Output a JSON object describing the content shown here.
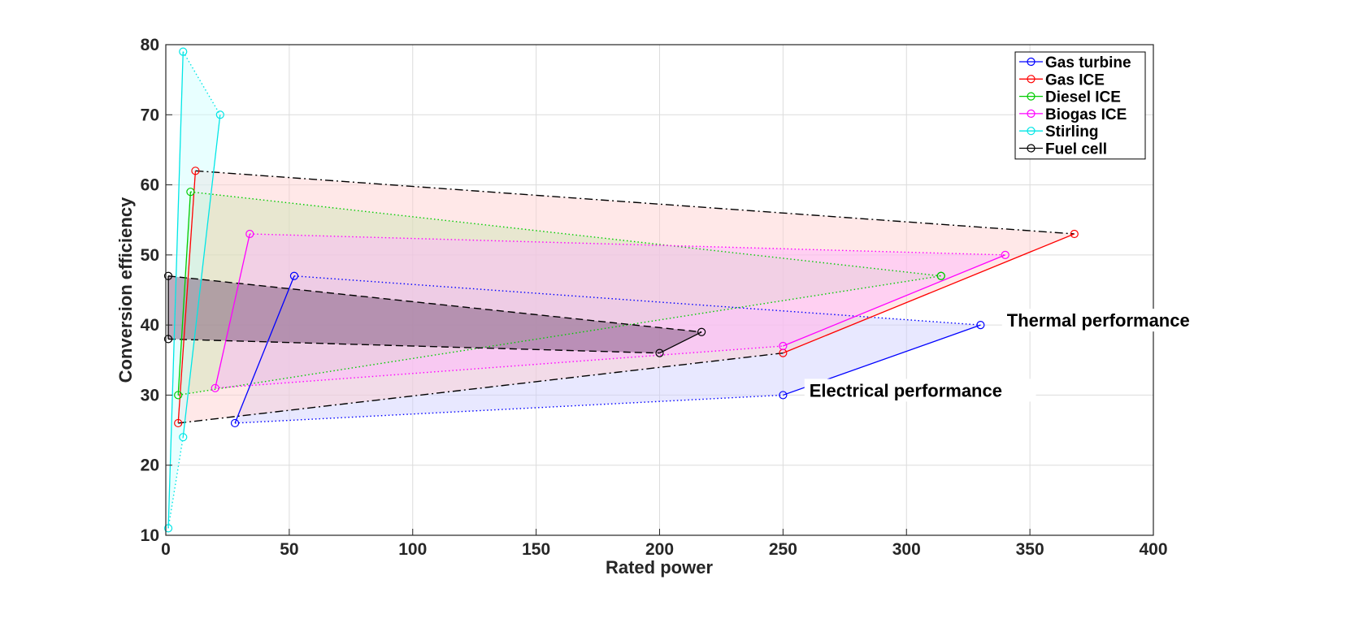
{
  "chart_data": {
    "type": "line",
    "title": "",
    "xlabel": "Rated power",
    "ylabel": "Conversion efficiency",
    "xlim": [
      0,
      400
    ],
    "ylim": [
      10,
      80
    ],
    "xticks": [
      0,
      50,
      100,
      150,
      200,
      250,
      300,
      350,
      400
    ],
    "yticks": [
      10,
      20,
      30,
      40,
      50,
      60,
      70,
      80
    ],
    "grid": true,
    "legend_position": "top-right",
    "series": [
      {
        "name": "Gas turbine",
        "color": "#0000ff",
        "fill": "#ccccff",
        "electrical": [
          [
            28,
            26
          ],
          [
            250,
            30
          ]
        ],
        "thermal": [
          [
            52,
            47
          ],
          [
            330,
            40
          ]
        ],
        "edge_style": "dotted"
      },
      {
        "name": "Gas ICE",
        "color": "#ff0000",
        "fill": "#ffcccc",
        "electrical": [
          [
            5,
            26
          ],
          [
            250,
            36
          ]
        ],
        "thermal": [
          [
            12,
            62
          ],
          [
            368,
            53
          ]
        ],
        "edge_style": "dashdot"
      },
      {
        "name": "Diesel ICE",
        "color": "#00cc00",
        "fill": "#cce6b3",
        "electrical": [
          [
            5,
            30
          ],
          [
            314,
            47
          ]
        ],
        "thermal": [
          [
            10,
            59
          ],
          [
            314,
            47
          ]
        ],
        "edge_style": "dotted"
      },
      {
        "name": "Biogas ICE",
        "color": "#ff00ff",
        "fill": "#ffb3ff",
        "electrical": [
          [
            20,
            31
          ],
          [
            250,
            37
          ]
        ],
        "thermal": [
          [
            34,
            53
          ],
          [
            340,
            50
          ]
        ],
        "edge_style": "dotted"
      },
      {
        "name": "Stirling",
        "color": "#00e6e6",
        "fill": "#ccffff",
        "electrical": [
          [
            1,
            11
          ],
          [
            7,
            24
          ]
        ],
        "thermal": [
          [
            7,
            79
          ],
          [
            22,
            70
          ]
        ],
        "edge_style": "dotted"
      },
      {
        "name": "Fuel cell",
        "color": "#000000",
        "fill": "#6e4a6e",
        "electrical": [
          [
            1,
            38
          ],
          [
            200,
            36
          ]
        ],
        "thermal": [
          [
            1,
            47
          ],
          [
            217,
            39
          ]
        ],
        "edge_style": "dashed"
      }
    ],
    "annotations": [
      {
        "text": "Thermal performance",
        "x": 340,
        "y": 40
      },
      {
        "text": "Electrical performance",
        "x": 260,
        "y": 30
      }
    ]
  }
}
